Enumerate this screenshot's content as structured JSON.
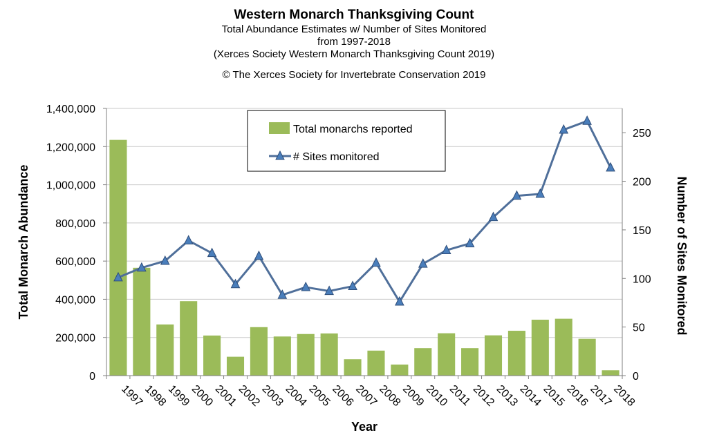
{
  "chart_data": {
    "type": "bar+line",
    "title": "Western Monarch Thanksgiving Count",
    "subtitle_lines": [
      "Total Abundance Estimates w/ Number of Sites Monitored",
      "from 1997-2018",
      "(Xerces Society Western Monarch Thanksgiving Count 2019)"
    ],
    "copyright": "© The Xerces Society for Invertebrate Conservation 2019",
    "xlabel": "Year",
    "ylabel_left": "Total Monarch Abundance",
    "ylabel_right": "Number of Sites Monitored",
    "categories": [
      "1997",
      "1998",
      "1999",
      "2000",
      "2001",
      "2002",
      "2003",
      "2004",
      "2005",
      "2006",
      "2007",
      "2008",
      "2009",
      "2010",
      "2011",
      "2012",
      "2013",
      "2014",
      "2015",
      "2016",
      "2017",
      "2018"
    ],
    "left_ticks": [
      "0",
      "200,000",
      "400,000",
      "600,000",
      "800,000",
      "1,000,000",
      "1,200,000",
      "1,400,000"
    ],
    "right_ticks": [
      "0",
      "50",
      "100",
      "150",
      "200",
      "250"
    ],
    "ylim_left": [
      0,
      1400000
    ],
    "ylim_right": [
      0,
      275
    ],
    "grid": true,
    "legend_position": "top-center",
    "series": [
      {
        "name": "Total monarchs reported",
        "kind": "bar",
        "axis": "left",
        "color": "#9bbb59",
        "values": [
          1235000,
          565000,
          268000,
          390000,
          210000,
          99000,
          254000,
          205000,
          218000,
          221000,
          86000,
          131000,
          58000,
          144000,
          222000,
          144000,
          211000,
          235000,
          293000,
          298000,
          193000,
          28000
        ]
      },
      {
        "name": "# Sites monitored",
        "kind": "line",
        "axis": "right",
        "color": "#4f6f9a",
        "values": [
          101,
          111,
          118,
          139,
          126,
          94,
          123,
          83,
          91,
          87,
          92,
          116,
          76,
          115,
          129,
          136,
          163,
          185,
          187,
          253,
          262,
          214
        ]
      }
    ]
  }
}
